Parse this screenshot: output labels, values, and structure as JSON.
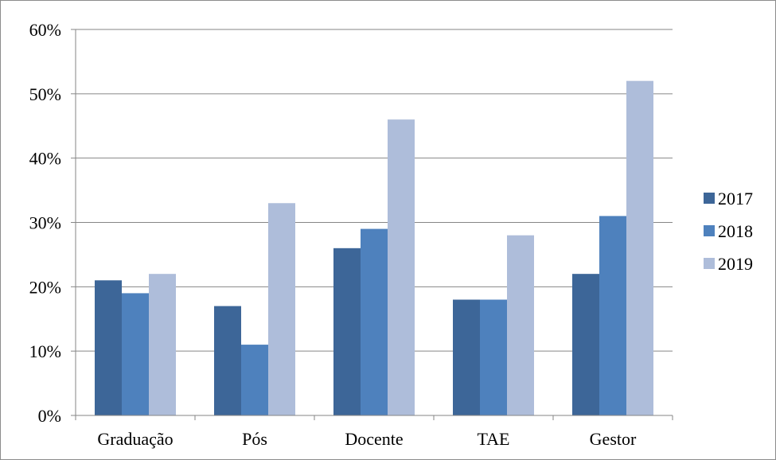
{
  "chart_data": {
    "type": "bar",
    "categories": [
      "Graduação",
      "Pós",
      "Docente",
      "TAE",
      "Gestor"
    ],
    "series": [
      {
        "name": "2017",
        "values": [
          21,
          17,
          26,
          18,
          22
        ],
        "color": "#3D6698"
      },
      {
        "name": "2018",
        "values": [
          19,
          11,
          29,
          18,
          31
        ],
        "color": "#4E81BD"
      },
      {
        "name": "2019",
        "values": [
          22,
          33,
          46,
          28,
          52
        ],
        "color": "#AEBDDA"
      }
    ],
    "y_ticks": [
      "0%",
      "10%",
      "20%",
      "30%",
      "40%",
      "50%",
      "60%"
    ],
    "ylim": [
      0,
      60
    ],
    "y_unit": "%",
    "grid": true,
    "legend_position": "right"
  }
}
